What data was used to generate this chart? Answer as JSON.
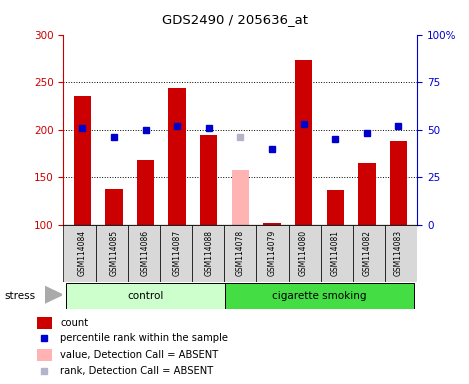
{
  "title": "GDS2490 / 205636_at",
  "samples": [
    "GSM114084",
    "GSM114085",
    "GSM114086",
    "GSM114087",
    "GSM114088",
    "GSM114078",
    "GSM114079",
    "GSM114080",
    "GSM114081",
    "GSM114082",
    "GSM114083"
  ],
  "bar_values": [
    235,
    137,
    168,
    244,
    194,
    null,
    102,
    273,
    136,
    165,
    188
  ],
  "bar_absent_values": [
    null,
    null,
    null,
    null,
    null,
    157,
    null,
    null,
    null,
    null,
    null
  ],
  "dot_values_pct": [
    51,
    46,
    50,
    52,
    51,
    null,
    40,
    53,
    45,
    48,
    52
  ],
  "dot_absent_values_pct": [
    null,
    null,
    null,
    null,
    null,
    46,
    null,
    null,
    null,
    null,
    null
  ],
  "ylim_left": [
    100,
    300
  ],
  "ylim_right": [
    0,
    100
  ],
  "yticks_left": [
    100,
    150,
    200,
    250,
    300
  ],
  "yticks_right": [
    0,
    25,
    50,
    75,
    100
  ],
  "ytick_labels_right": [
    "0",
    "25",
    "50",
    "75",
    "100%"
  ],
  "bar_color": "#cc0000",
  "bar_absent_color": "#ffb3b3",
  "dot_color": "#0000cc",
  "dot_absent_color": "#b3b3cc",
  "left_tick_color": "#cc0000",
  "right_tick_color": "#0000cc",
  "ctrl_color": "#ccffcc",
  "cig_color": "#44dd44",
  "n_control": 5,
  "n_total": 11,
  "stress_label": "stress",
  "background_color": "#ffffff",
  "legend_items": [
    {
      "label": "count",
      "color": "#cc0000",
      "type": "bar"
    },
    {
      "label": "percentile rank within the sample",
      "color": "#0000cc",
      "type": "dot"
    },
    {
      "label": "value, Detection Call = ABSENT",
      "color": "#ffb3b3",
      "type": "bar"
    },
    {
      "label": "rank, Detection Call = ABSENT",
      "color": "#b3b3cc",
      "type": "dot"
    }
  ]
}
